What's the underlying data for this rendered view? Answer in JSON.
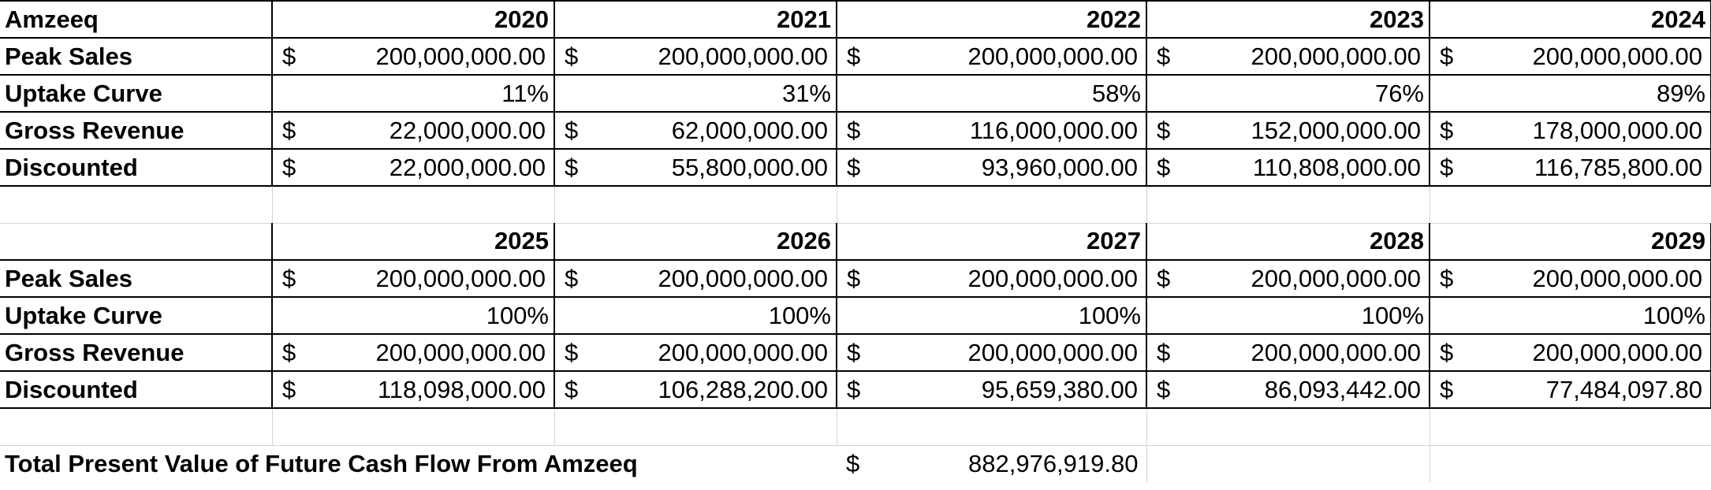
{
  "table1": {
    "corner": "Amzeeq",
    "years": [
      "2020",
      "2021",
      "2022",
      "2023",
      "2024"
    ],
    "rows": [
      {
        "label": "Peak Sales",
        "kind": "currency",
        "values": [
          "200,000,000.00",
          "200,000,000.00",
          "200,000,000.00",
          "200,000,000.00",
          "200,000,000.00"
        ]
      },
      {
        "label": "Uptake Curve",
        "kind": "percent",
        "values": [
          "11%",
          "31%",
          "58%",
          "76%",
          "89%"
        ]
      },
      {
        "label": "Gross Revenue",
        "kind": "currency",
        "values": [
          "22,000,000.00",
          "62,000,000.00",
          "116,000,000.00",
          "152,000,000.00",
          "178,000,000.00"
        ]
      },
      {
        "label": "Discounted",
        "kind": "currency",
        "values": [
          "22,000,000.00",
          "55,800,000.00",
          "93,960,000.00",
          "110,808,000.00",
          "116,785,800.00"
        ]
      }
    ]
  },
  "table2": {
    "corner": "",
    "years": [
      "2025",
      "2026",
      "2027",
      "2028",
      "2029"
    ],
    "rows": [
      {
        "label": "Peak Sales",
        "kind": "currency",
        "values": [
          "200,000,000.00",
          "200,000,000.00",
          "200,000,000.00",
          "200,000,000.00",
          "200,000,000.00"
        ]
      },
      {
        "label": "Uptake Curve",
        "kind": "percent",
        "values": [
          "100%",
          "100%",
          "100%",
          "100%",
          "100%"
        ]
      },
      {
        "label": "Gross Revenue",
        "kind": "currency",
        "values": [
          "200,000,000.00",
          "200,000,000.00",
          "200,000,000.00",
          "200,000,000.00",
          "200,000,000.00"
        ]
      },
      {
        "label": "Discounted",
        "kind": "currency",
        "values": [
          "118,098,000.00",
          "106,288,200.00",
          "95,659,380.00",
          "86,093,442.00",
          "77,484,097.80"
        ]
      }
    ]
  },
  "currency_symbol": "$",
  "total": {
    "label": "Total Present Value of Future Cash Flow From Amzeeq",
    "symbol": "$",
    "value": "882,976,919.80"
  }
}
